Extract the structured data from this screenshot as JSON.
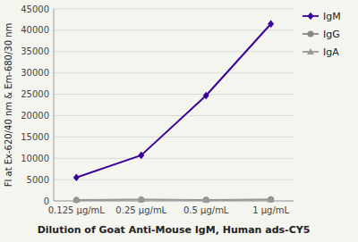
{
  "chart_data": {
    "type": "line",
    "categories": [
      "0.125 μg/mL",
      "0.25 μg/mL",
      "0.5 μg/mL",
      "1 μg/mL"
    ],
    "series": [
      {
        "name": "IgM",
        "color": "#3a0099",
        "marker": "diamond",
        "values": [
          5500,
          10700,
          24700,
          41500
        ]
      },
      {
        "name": "IgG",
        "color": "#888888",
        "marker": "circle",
        "values": [
          200,
          300,
          250,
          350
        ]
      },
      {
        "name": "IgA",
        "color": "#999999",
        "marker": "triangle",
        "values": [
          270,
          380,
          220,
          320
        ]
      }
    ],
    "ylabel": "FI at Ex-620/40 nm & Em-680/30 nm",
    "xlabel": "Dilution of Goat Anti-Mouse IgM, Human ads-CY5",
    "ylim": [
      0,
      45000
    ],
    "yticks": [
      0,
      5000,
      10000,
      15000,
      20000,
      25000,
      30000,
      35000,
      40000,
      45000
    ],
    "grid": true,
    "legend": "right"
  }
}
